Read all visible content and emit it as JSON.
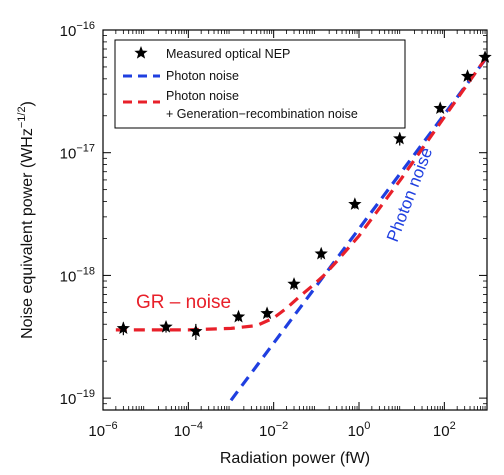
{
  "chart_data": {
    "type": "line",
    "xlabel": "Radiation power (fW)",
    "ylabel_base": "Noise equivalent power (WHz",
    "ylabel_exp": "−1/2",
    "ylabel_end": ")",
    "x_scale": "log",
    "y_scale": "log",
    "xlim": [
      1e-06,
      1000
    ],
    "ylim": [
      8e-20,
      1e-16
    ],
    "x_tick_exponents": [
      "−6",
      "−4",
      "−2",
      "0",
      "2"
    ],
    "x_tick_values": [
      1e-06,
      0.0001,
      0.01,
      1,
      100
    ],
    "y_tick_exponents": [
      "−19",
      "−18",
      "−17",
      "−16"
    ],
    "y_tick_values": [
      1e-19,
      1e-18,
      1e-17,
      1e-16
    ],
    "tick_base": "10",
    "grid": false,
    "legend_position": "top-left",
    "series": [
      {
        "name": "Measured optical NEP",
        "kind": "scatter",
        "color": "#000000",
        "marker": "star",
        "x": [
          3e-06,
          3e-05,
          0.00015,
          0.0015,
          0.007,
          0.03,
          0.13,
          0.8,
          9,
          80,
          350,
          900
        ],
        "y": [
          3.7e-19,
          3.8e-19,
          3.5e-19,
          4.6e-19,
          4.9e-19,
          8.5e-19,
          1.5e-18,
          3.8e-18,
          1.3e-17,
          2.3e-17,
          4.2e-17,
          6e-17
        ],
        "yerr_rel": [
          0.12,
          0.1,
          0.15,
          0.08,
          0.08,
          0.1,
          0.1,
          0.08,
          0.12,
          0.08,
          0.08,
          0.06
        ]
      },
      {
        "name": "Photon noise",
        "kind": "line",
        "color": "#1f3fe0",
        "dash": "dashed",
        "x": [
          0.001,
          1000
        ],
        "y": [
          9.6e-20,
          6e-17
        ]
      },
      {
        "name": "Photon noise\n+ Generation−recombination noise",
        "kind": "line",
        "color": "#e8202a",
        "dash": "dashed",
        "x": [
          2e-06,
          1e-05,
          0.0001,
          0.001,
          0.004,
          0.01,
          0.02,
          0.04,
          0.08,
          0.15,
          0.3,
          1,
          10,
          100,
          1000
        ],
        "y": [
          3.6e-19,
          3.6e-19,
          3.6e-19,
          3.7e-19,
          3.9e-19,
          4.5e-19,
          5.4e-19,
          6.7e-19,
          8.2e-19,
          1e-18,
          1.3e-18,
          2.1e-18,
          6.2e-18,
          1.95e-17,
          6.1e-17
        ]
      }
    ],
    "annotations": [
      {
        "text": "GR – noise",
        "color": "#e8202a"
      },
      {
        "text": "Photon noise",
        "color": "#1f3fe0"
      }
    ]
  },
  "legend": {
    "entries": [
      {
        "label_lines": [
          "Measured optical NEP"
        ]
      },
      {
        "label_lines": [
          "Photon noise"
        ]
      },
      {
        "label_lines": [
          "Photon noise",
          "+ Generation−recombination noise"
        ]
      }
    ]
  }
}
